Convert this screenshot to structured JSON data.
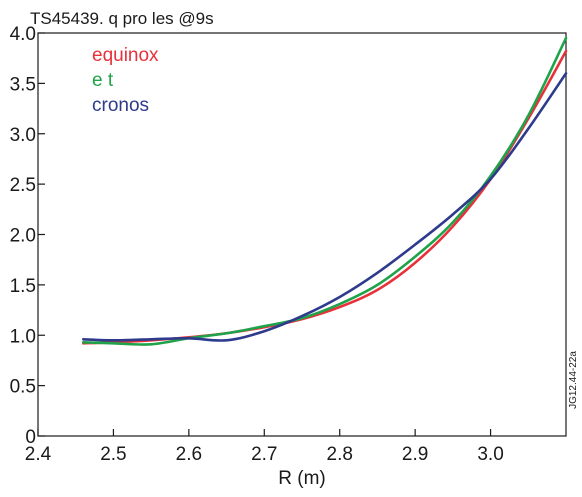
{
  "chart_data": {
    "type": "line",
    "title": "TS45439. q pro   les @9s",
    "xlabel": "R (m)",
    "ylabel": "",
    "xlim": [
      2.4,
      3.1
    ],
    "ylim": [
      0,
      4.0
    ],
    "x_ticks": [
      "2.4",
      "2.5",
      "2.6",
      "2.7",
      "2.8",
      "2.9",
      "3.0"
    ],
    "y_ticks": [
      "0",
      "0.5",
      "1.0",
      "1.5",
      "2.0",
      "2.5",
      "3.0",
      "3.5",
      "4.0"
    ],
    "grid": false,
    "legend_position": "top-left",
    "side_label": "JG12.44-22a",
    "series": [
      {
        "name": "equinox",
        "color": "#e8313a",
        "x": [
          2.46,
          2.5,
          2.55,
          2.6,
          2.65,
          2.7,
          2.75,
          2.8,
          2.85,
          2.9,
          2.95,
          3.0,
          3.05,
          3.1
        ],
        "y": [
          0.92,
          0.93,
          0.95,
          0.98,
          1.02,
          1.08,
          1.16,
          1.28,
          1.45,
          1.72,
          2.08,
          2.55,
          3.15,
          3.82
        ]
      },
      {
        "name": "e t",
        "color": "#1fa34a",
        "x": [
          2.46,
          2.5,
          2.55,
          2.6,
          2.65,
          2.7,
          2.75,
          2.8,
          2.85,
          2.9,
          2.95,
          3.0,
          3.05,
          3.1
        ],
        "y": [
          0.93,
          0.92,
          0.91,
          0.97,
          1.02,
          1.09,
          1.17,
          1.31,
          1.5,
          1.78,
          2.12,
          2.58,
          3.18,
          3.95
        ]
      },
      {
        "name": "cronos",
        "color": "#2e3a8c",
        "x": [
          2.46,
          2.5,
          2.55,
          2.6,
          2.65,
          2.7,
          2.75,
          2.8,
          2.85,
          2.9,
          2.95,
          3.0,
          3.05,
          3.1
        ],
        "y": [
          0.96,
          0.95,
          0.96,
          0.97,
          0.95,
          1.04,
          1.19,
          1.38,
          1.62,
          1.9,
          2.2,
          2.55,
          3.05,
          3.6
        ]
      }
    ]
  }
}
